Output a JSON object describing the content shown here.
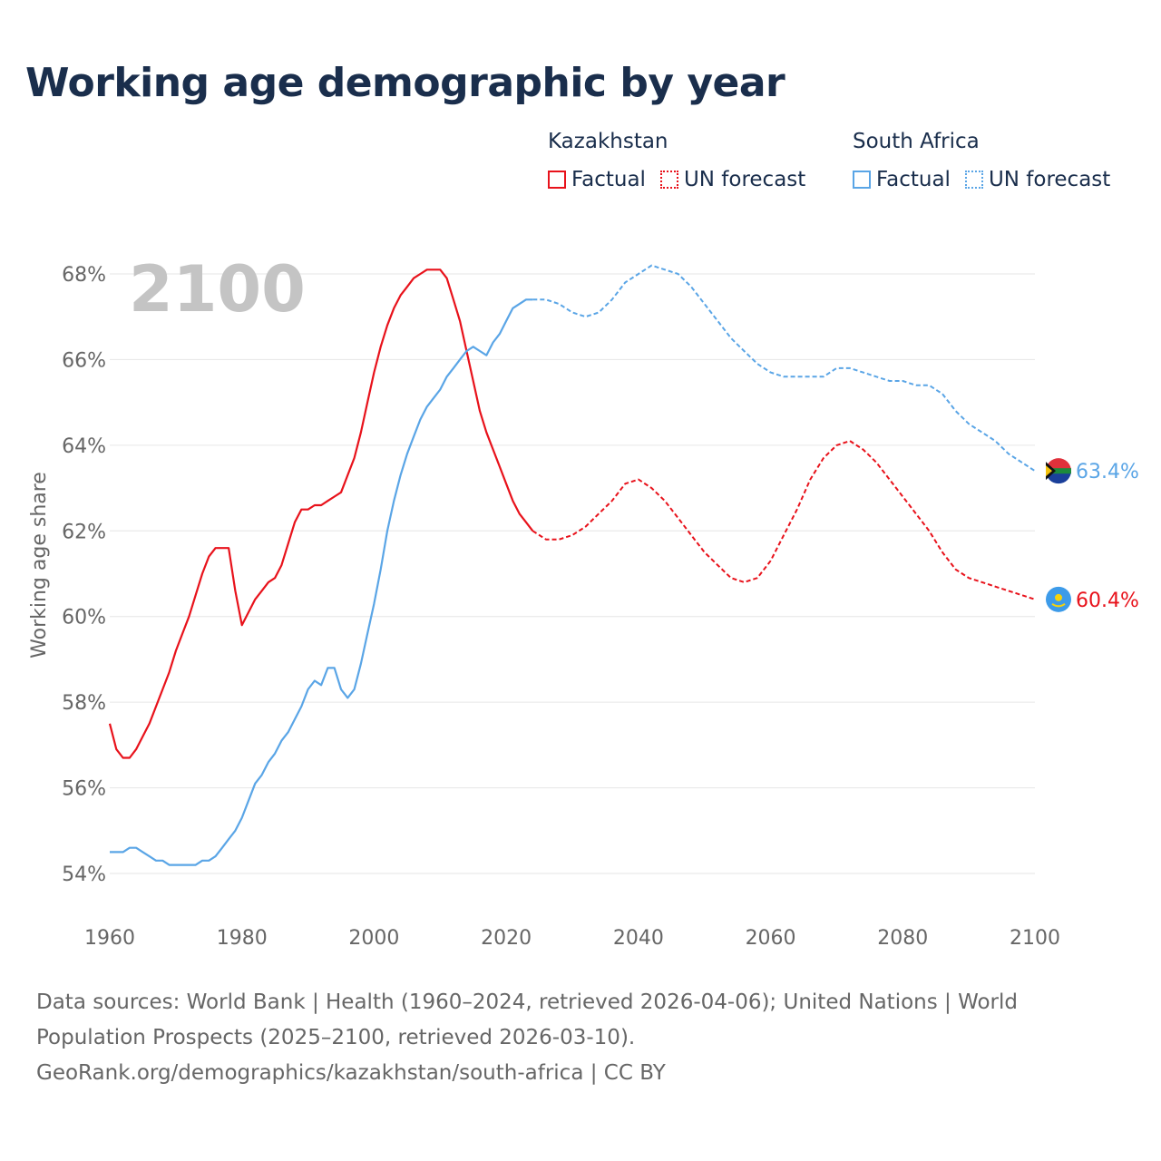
{
  "title": "Working age demographic by year",
  "year_watermark": "2100",
  "legend": {
    "groups": [
      {
        "country": "Kazakhstan",
        "factual_label": "Factual",
        "forecast_label": "UN forecast",
        "color": "#e8121b"
      },
      {
        "country": "South Africa",
        "factual_label": "Factual",
        "forecast_label": "UN forecast",
        "color": "#5aa5e6"
      }
    ]
  },
  "footer": {
    "line1": "Data sources: World Bank | Health (1960–2024, retrieved 2026-04-06); United Nations | World",
    "line2": "Population Prospects (2025–2100, retrieved 2026-03-10).",
    "line3": "GeoRank.org/demographics/kazakhstan/south-africa | CC BY"
  },
  "chart_data": {
    "type": "line",
    "title": "Working age demographic by year",
    "xlabel": "",
    "ylabel": "Working age share",
    "xlim": [
      1960,
      2100
    ],
    "ylim": [
      53,
      69
    ],
    "x_ticks": [
      1960,
      1980,
      2000,
      2020,
      2040,
      2060,
      2080,
      2100
    ],
    "y_ticks": [
      54,
      56,
      58,
      60,
      62,
      64,
      66,
      68
    ],
    "y_tick_labels": [
      "54%",
      "56%",
      "58%",
      "60%",
      "62%",
      "64%",
      "66%",
      "68%"
    ],
    "grid": true,
    "series": [
      {
        "name": "Kazakhstan",
        "color": "#e8121b",
        "end_label": "60.4%",
        "factual": {
          "x": [
            1960,
            1961,
            1962,
            1963,
            1964,
            1965,
            1966,
            1967,
            1968,
            1969,
            1970,
            1971,
            1972,
            1973,
            1974,
            1975,
            1976,
            1977,
            1978,
            1979,
            1980,
            1981,
            1982,
            1983,
            1984,
            1985,
            1986,
            1987,
            1988,
            1989,
            1990,
            1991,
            1992,
            1993,
            1994,
            1995,
            1996,
            1997,
            1998,
            1999,
            2000,
            2001,
            2002,
            2003,
            2004,
            2005,
            2006,
            2007,
            2008,
            2009,
            2010,
            2011,
            2012,
            2013,
            2014,
            2015,
            2016,
            2017,
            2018,
            2019,
            2020,
            2021,
            2022,
            2023,
            2024
          ],
          "y": [
            57.5,
            56.9,
            56.7,
            56.7,
            56.9,
            57.2,
            57.5,
            57.9,
            58.3,
            58.7,
            59.2,
            59.6,
            60.0,
            60.5,
            61.0,
            61.4,
            61.6,
            61.6,
            61.6,
            60.6,
            59.8,
            60.1,
            60.4,
            60.6,
            60.8,
            60.9,
            61.2,
            61.7,
            62.2,
            62.5,
            62.5,
            62.6,
            62.6,
            62.7,
            62.8,
            62.9,
            63.3,
            63.7,
            64.3,
            65.0,
            65.7,
            66.3,
            66.8,
            67.2,
            67.5,
            67.7,
            67.9,
            68.0,
            68.1,
            68.1,
            68.1,
            67.9,
            67.4,
            66.9,
            66.2,
            65.5,
            64.8,
            64.3,
            63.9,
            63.5,
            63.1,
            62.7,
            62.4,
            62.2,
            62.0
          ]
        },
        "forecast": {
          "x": [
            2024,
            2026,
            2028,
            2030,
            2032,
            2034,
            2036,
            2038,
            2040,
            2042,
            2044,
            2046,
            2048,
            2050,
            2052,
            2054,
            2056,
            2058,
            2060,
            2062,
            2064,
            2066,
            2068,
            2070,
            2072,
            2074,
            2076,
            2078,
            2080,
            2082,
            2084,
            2086,
            2088,
            2090,
            2092,
            2094,
            2096,
            2098,
            2100
          ],
          "y": [
            62.0,
            61.8,
            61.8,
            61.9,
            62.1,
            62.4,
            62.7,
            63.1,
            63.2,
            63.0,
            62.7,
            62.3,
            61.9,
            61.5,
            61.2,
            60.9,
            60.8,
            60.9,
            61.3,
            61.9,
            62.5,
            63.2,
            63.7,
            64.0,
            64.1,
            63.9,
            63.6,
            63.2,
            62.8,
            62.4,
            62.0,
            61.5,
            61.1,
            60.9,
            60.8,
            60.7,
            60.6,
            60.5,
            60.4
          ]
        }
      },
      {
        "name": "South Africa",
        "color": "#5aa5e6",
        "end_label": "63.4%",
        "factual": {
          "x": [
            1960,
            1961,
            1962,
            1963,
            1964,
            1965,
            1966,
            1967,
            1968,
            1969,
            1970,
            1971,
            1972,
            1973,
            1974,
            1975,
            1976,
            1977,
            1978,
            1979,
            1980,
            1981,
            1982,
            1983,
            1984,
            1985,
            1986,
            1987,
            1988,
            1989,
            1990,
            1991,
            1992,
            1993,
            1994,
            1995,
            1996,
            1997,
            1998,
            1999,
            2000,
            2001,
            2002,
            2003,
            2004,
            2005,
            2006,
            2007,
            2008,
            2009,
            2010,
            2011,
            2012,
            2013,
            2014,
            2015,
            2016,
            2017,
            2018,
            2019,
            2020,
            2021,
            2022,
            2023,
            2024
          ],
          "y": [
            54.5,
            54.5,
            54.5,
            54.6,
            54.6,
            54.5,
            54.4,
            54.3,
            54.3,
            54.2,
            54.2,
            54.2,
            54.2,
            54.2,
            54.3,
            54.3,
            54.4,
            54.6,
            54.8,
            55.0,
            55.3,
            55.7,
            56.1,
            56.3,
            56.6,
            56.8,
            57.1,
            57.3,
            57.6,
            57.9,
            58.3,
            58.5,
            58.4,
            58.8,
            58.8,
            58.3,
            58.1,
            58.3,
            58.9,
            59.6,
            60.3,
            61.1,
            62.0,
            62.7,
            63.3,
            63.8,
            64.2,
            64.6,
            64.9,
            65.1,
            65.3,
            65.6,
            65.8,
            66.0,
            66.2,
            66.3,
            66.2,
            66.1,
            66.4,
            66.6,
            66.9,
            67.2,
            67.3,
            67.4,
            67.4
          ]
        },
        "forecast": {
          "x": [
            2024,
            2026,
            2028,
            2030,
            2032,
            2034,
            2036,
            2038,
            2040,
            2042,
            2044,
            2046,
            2048,
            2050,
            2052,
            2054,
            2056,
            2058,
            2060,
            2062,
            2064,
            2066,
            2068,
            2070,
            2072,
            2074,
            2076,
            2078,
            2080,
            2082,
            2084,
            2086,
            2088,
            2090,
            2092,
            2094,
            2096,
            2098,
            2100
          ],
          "y": [
            67.4,
            67.4,
            67.3,
            67.1,
            67.0,
            67.1,
            67.4,
            67.8,
            68.0,
            68.2,
            68.1,
            68.0,
            67.7,
            67.3,
            66.9,
            66.5,
            66.2,
            65.9,
            65.7,
            65.6,
            65.6,
            65.6,
            65.6,
            65.8,
            65.8,
            65.7,
            65.6,
            65.5,
            65.5,
            65.4,
            65.4,
            65.2,
            64.8,
            64.5,
            64.3,
            64.1,
            63.8,
            63.6,
            63.4
          ]
        }
      }
    ]
  }
}
